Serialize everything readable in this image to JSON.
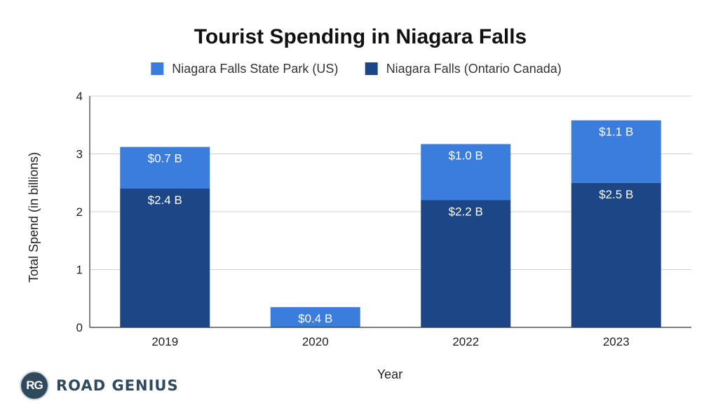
{
  "chart_data": {
    "type": "bar",
    "stacked": true,
    "title": "Tourist Spending in Niagara Falls",
    "xlabel": "Year",
    "ylabel": "Total Spend (in billions)",
    "categories": [
      "2019",
      "2020",
      "2022",
      "2023"
    ],
    "ylim": [
      0,
      4
    ],
    "yticks": [
      "0",
      "1",
      "2",
      "3",
      "4"
    ],
    "grid": true,
    "legend_position": "top",
    "series": [
      {
        "name": "Niagara Falls (Ontario Canada)",
        "color": "#1d4687",
        "values": [
          2.4,
          null,
          2.2,
          2.5
        ],
        "labels": [
          "$2.4 B",
          "",
          "$2.2 B",
          "$2.5 B"
        ]
      },
      {
        "name": "Niagara Falls State Park (US)",
        "color": "#3b7ddd",
        "values": [
          0.72,
          0.35,
          0.97,
          1.08
        ],
        "labels": [
          "$0.7 B",
          "$0.4 B",
          "$1.0 B",
          "$1.1 B"
        ]
      }
    ],
    "legend_order": [
      1,
      0
    ]
  },
  "logo": {
    "badge": "RG",
    "text": "ROAD GENIUS"
  }
}
